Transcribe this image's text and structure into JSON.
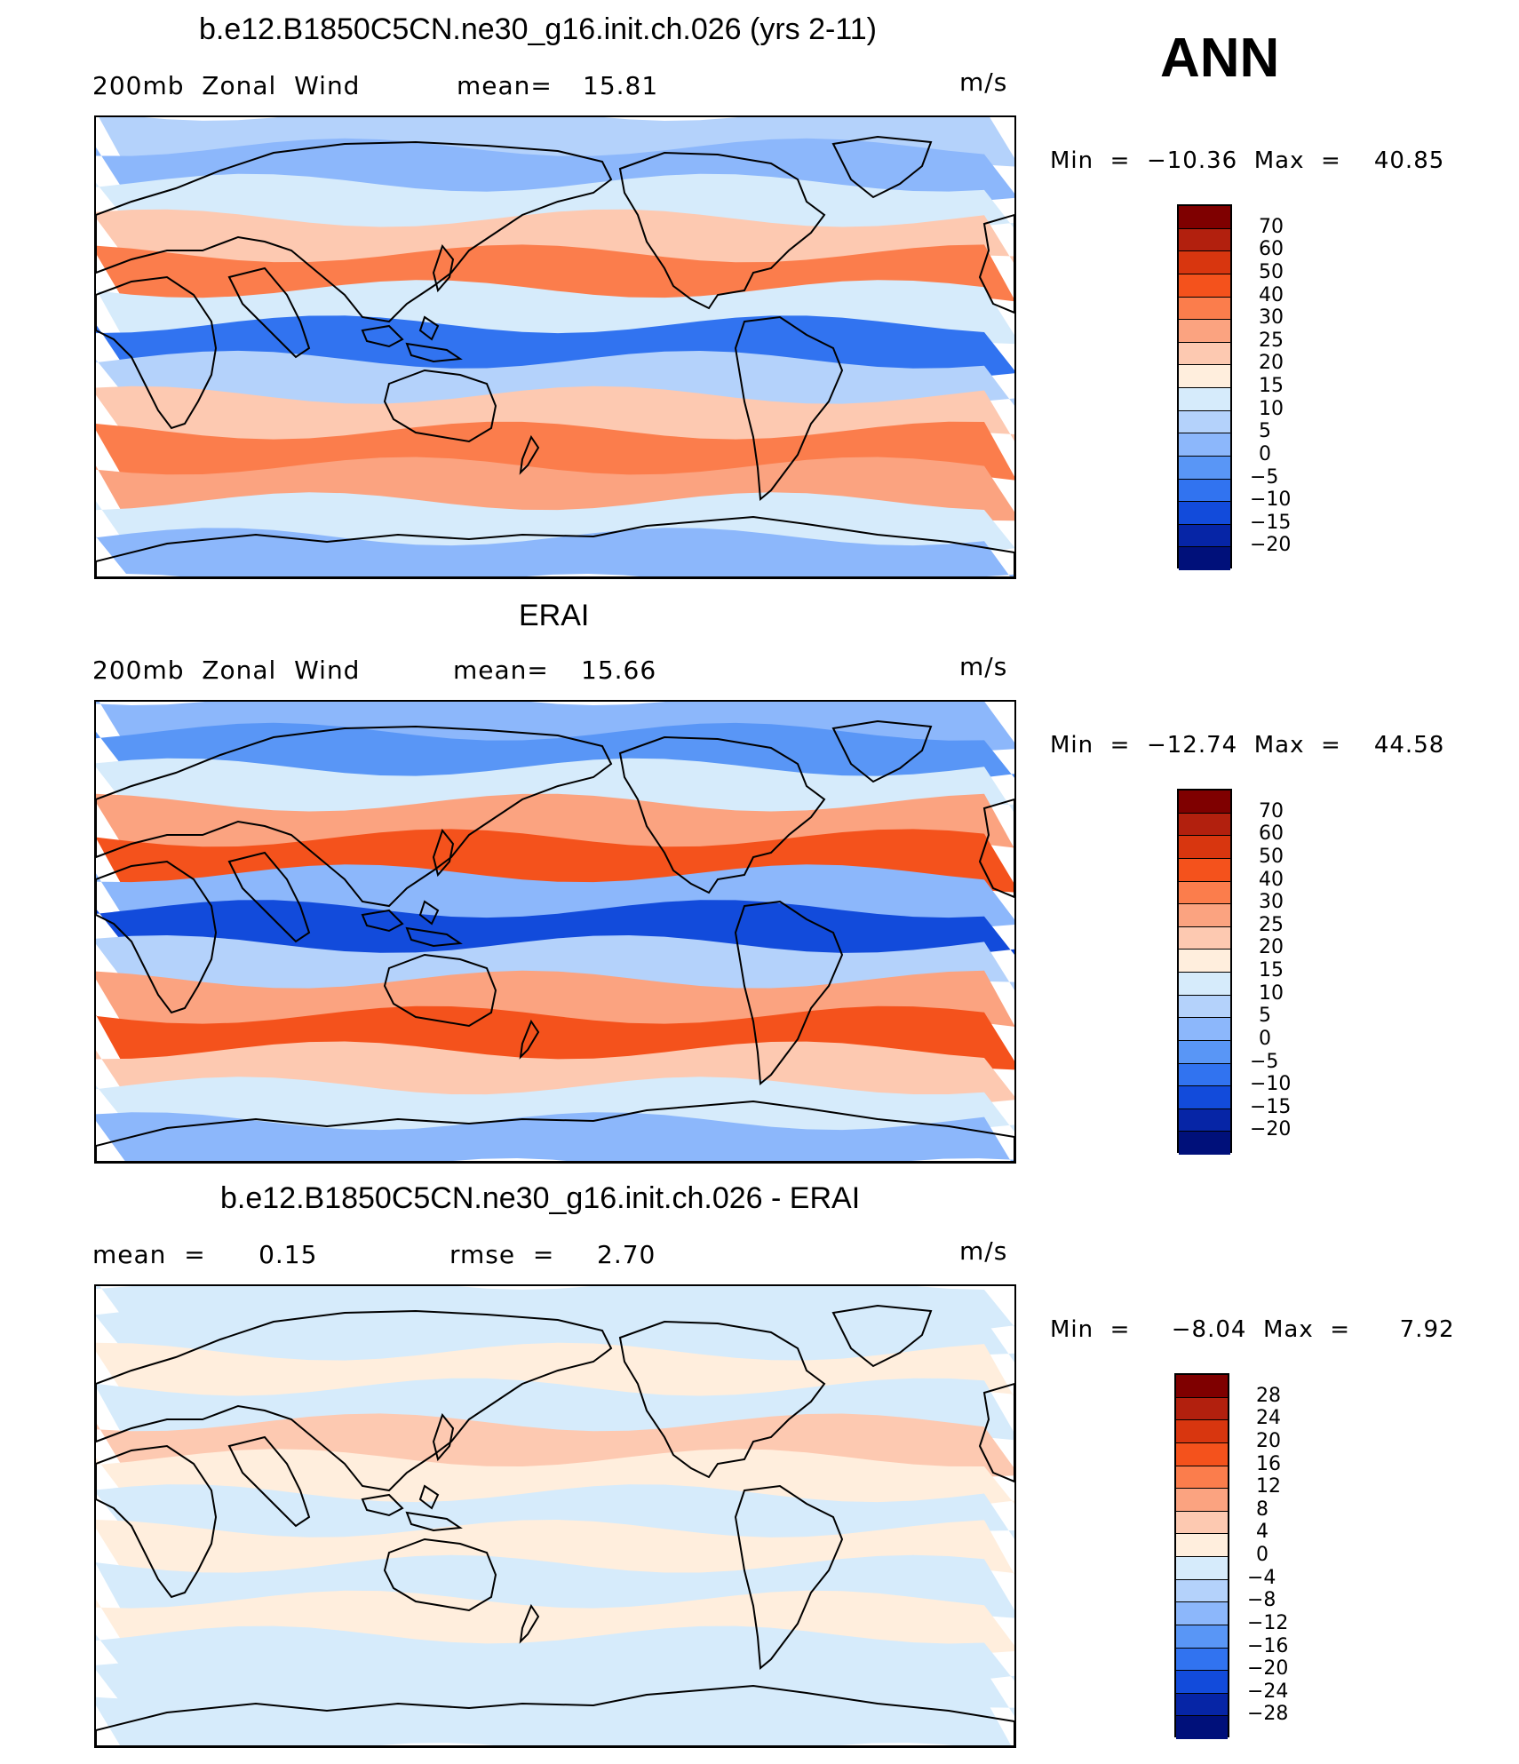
{
  "header": {
    "season": "ANN"
  },
  "panels": [
    {
      "title": "b.e12.B1850C5CN.ne30_g16.init.ch.026 (yrs 2-11)",
      "left_text": "200mb  Zonal  Wind",
      "mid_label": "mean=",
      "mid_value": "15.81",
      "units": "m/s",
      "minmax": "Min  =  −10.36  Max  =    40.85",
      "colorbar": {
        "labels": [
          "70",
          "60",
          "50",
          "40",
          "30",
          "25",
          "20",
          "15",
          "10",
          "5",
          "0",
          "−5",
          "−10",
          "−15",
          "−20"
        ],
        "colors": [
          "#7f0000",
          "#b2200e",
          "#d8360f",
          "#f4521c",
          "#fb7d4c",
          "#fba380",
          "#fdc9b1",
          "#ffeedd",
          "#d6ebfb",
          "#b4d2fb",
          "#8cb7fb",
          "#5996f6",
          "#3173f0",
          "#124bdb",
          "#0625a6",
          "#00107a"
        ]
      },
      "bands": [
        "#b4d2fb",
        "#8cb7fb",
        "#d6ebfb",
        "#fdc9b1",
        "#fb7d4c",
        "#d6ebfb",
        "#3173f0",
        "#b4d2fb",
        "#fdc9b1",
        "#fb7d4c",
        "#fba380",
        "#d6ebfb",
        "#8cb7fb"
      ]
    },
    {
      "title": "ERAI",
      "left_text": "200mb  Zonal  Wind",
      "mid_label": "mean=",
      "mid_value": "15.66",
      "units": "m/s",
      "minmax": "Min  =  −12.74  Max  =    44.58",
      "colorbar": {
        "labels": [
          "70",
          "60",
          "50",
          "40",
          "30",
          "25",
          "20",
          "15",
          "10",
          "5",
          "0",
          "−5",
          "−10",
          "−15",
          "−20"
        ],
        "colors": [
          "#7f0000",
          "#b2200e",
          "#d8360f",
          "#f4521c",
          "#fb7d4c",
          "#fba380",
          "#fdc9b1",
          "#ffeedd",
          "#d6ebfb",
          "#b4d2fb",
          "#8cb7fb",
          "#5996f6",
          "#3173f0",
          "#124bdb",
          "#0625a6",
          "#00107a"
        ]
      },
      "bands": [
        "#8cb7fb",
        "#5996f6",
        "#d6ebfb",
        "#fba380",
        "#f4521c",
        "#8cb7fb",
        "#124bdb",
        "#b4d2fb",
        "#fba380",
        "#f4521c",
        "#fdc9b1",
        "#d6ebfb",
        "#8cb7fb"
      ]
    },
    {
      "title": "b.e12.B1850C5CN.ne30_g16.init.ch.026 - ERAI",
      "left_text": "mean  =      0.15",
      "mid_label": "rmse  =",
      "mid_value": "2.70",
      "units": "m/s",
      "minmax": "Min  =     −8.04  Max  =      7.92",
      "colorbar": {
        "labels": [
          "28",
          "24",
          "20",
          "16",
          "12",
          "8",
          "4",
          "0",
          "−4",
          "−8",
          "−12",
          "−16",
          "−20",
          "−24",
          "−28"
        ],
        "colors": [
          "#7f0000",
          "#b2200e",
          "#d8360f",
          "#f4521c",
          "#fb7d4c",
          "#fba380",
          "#fdc9b1",
          "#ffeedd",
          "#d6ebfb",
          "#b4d2fb",
          "#8cb7fb",
          "#5996f6",
          "#3173f0",
          "#124bdb",
          "#0625a6",
          "#00107a"
        ]
      },
      "bands": [
        "#d6ebfb",
        "#d6ebfb",
        "#ffeedd",
        "#d6ebfb",
        "#fdc9b1",
        "#ffeedd",
        "#d6ebfb",
        "#ffeedd",
        "#d6ebfb",
        "#ffeedd",
        "#d6ebfb",
        "#d6ebfb",
        "#d6ebfb"
      ]
    }
  ]
}
